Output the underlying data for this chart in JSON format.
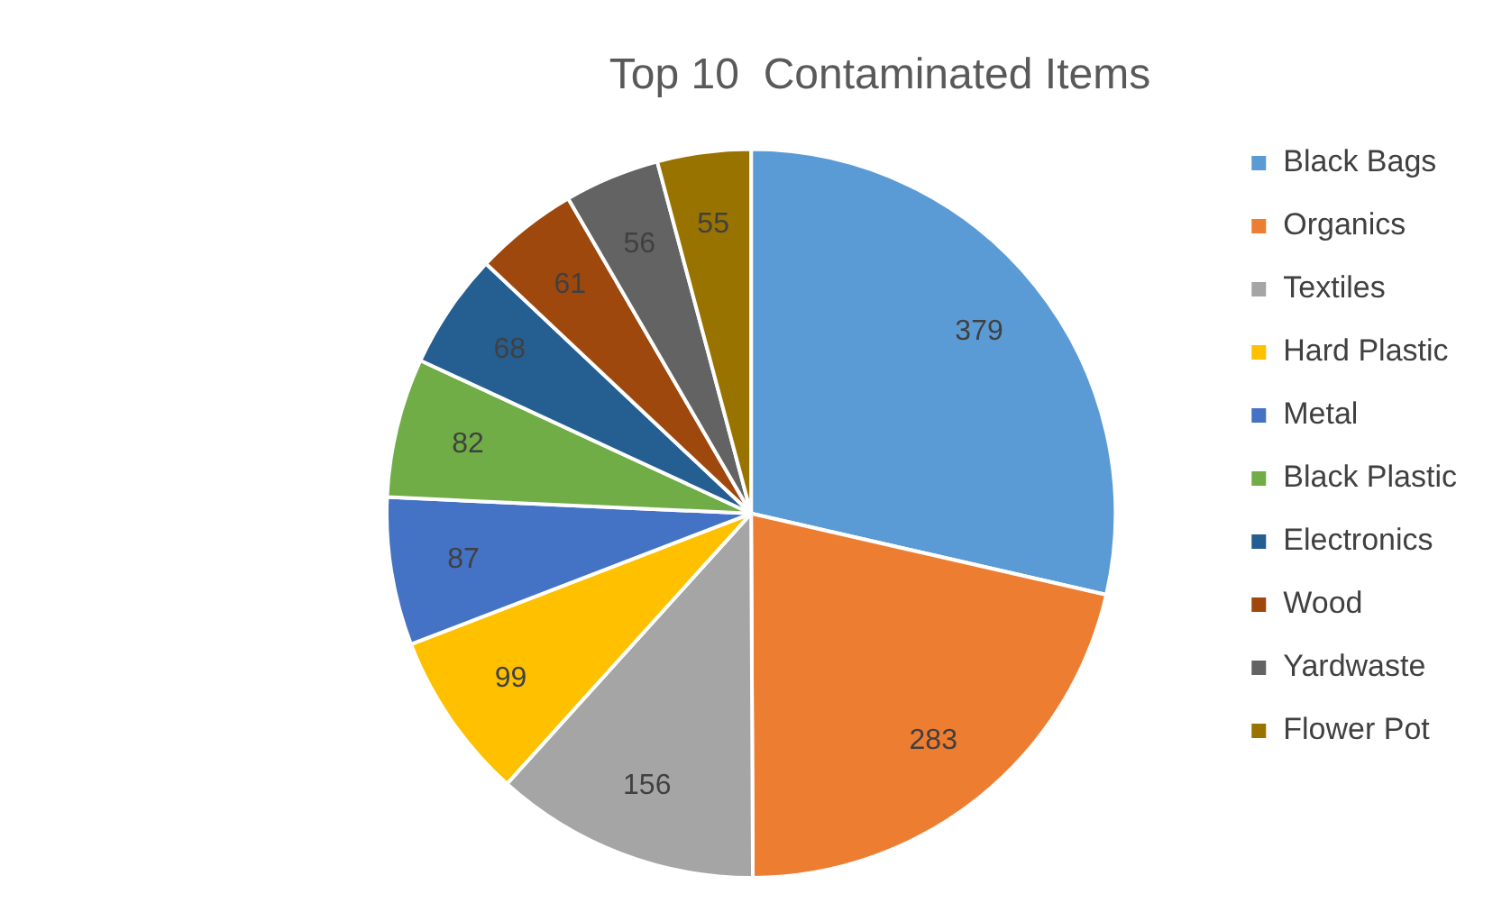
{
  "chart_data": {
    "type": "pie",
    "title": "Top 10  Contaminated Items",
    "categories": [
      "Black Bags",
      "Organics",
      "Textiles",
      "Hard Plastic",
      "Metal",
      "Black Plastic",
      "Electronics",
      "Wood",
      "Yardwaste",
      "Flower Pot"
    ],
    "values": [
      379,
      283,
      156,
      99,
      87,
      82,
      68,
      61,
      56,
      55
    ],
    "colors": [
      "#5b9bd5",
      "#ed7d31",
      "#a5a5a5",
      "#ffc000",
      "#4472c4",
      "#70ad47",
      "#255e91",
      "#9e480e",
      "#636363",
      "#997300"
    ],
    "data_labels": true,
    "legend": "right"
  }
}
